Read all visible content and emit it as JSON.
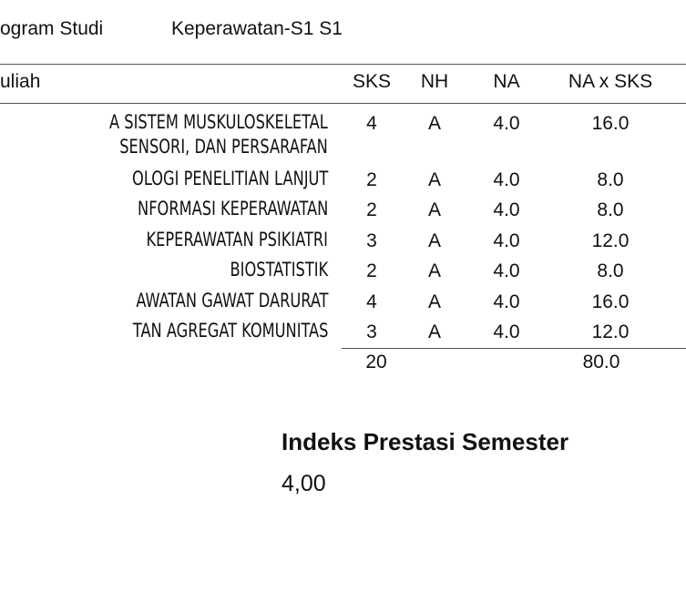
{
  "header": {
    "program_label": "ogram Studi",
    "program_value": "Keperawatan-S1 S1"
  },
  "table": {
    "columns": [
      "uliah",
      "SKS",
      "NH",
      "NA",
      "NA x SKS"
    ],
    "rows": [
      [
        [
          "A SISTEM MUSKULOSKELETAL",
          "SENSORI, DAN PERSARAFAN"
        ],
        "4",
        "A",
        "4.0",
        "16.0"
      ],
      [
        [
          "OLOGI PENELITIAN LANJUT"
        ],
        "2",
        "A",
        "4.0",
        "8.0"
      ],
      [
        [
          "NFORMASI KEPERAWATAN"
        ],
        "2",
        "A",
        "4.0",
        "8.0"
      ],
      [
        [
          "KEPERAWATAN PSIKIATRI"
        ],
        "3",
        "A",
        "4.0",
        "12.0"
      ],
      [
        [
          "BIOSTATISTIK"
        ],
        "2",
        "A",
        "4.0",
        "8.0"
      ],
      [
        [
          "AWATAN GAWAT DARURAT"
        ],
        "4",
        "A",
        "4.0",
        "16.0"
      ],
      [
        [
          "TAN AGREGAT KOMUNITAS"
        ],
        "3",
        "A",
        "4.0",
        "12.0"
      ]
    ],
    "totals": {
      "sks": "20",
      "naxsks": "80.0"
    }
  },
  "summary": {
    "title": "Indeks Prestasi Semester",
    "value": "4,00"
  }
}
